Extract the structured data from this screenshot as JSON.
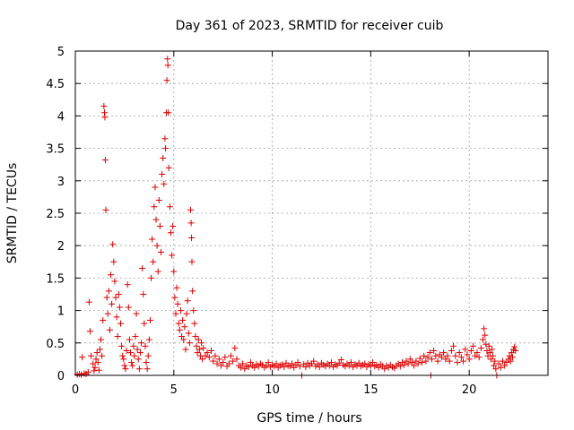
{
  "chart_data": {
    "type": "scatter",
    "title": "Day 361 of 2023, SRMTID for receiver cuib",
    "xlabel": "GPS time / hours",
    "ylabel": "SRMTID / TECUs",
    "xlim": [
      0,
      24
    ],
    "ylim": [
      0,
      5
    ],
    "x_ticks": [
      0,
      5,
      10,
      15,
      20
    ],
    "x_tick_labels": [
      "0",
      "5",
      "10",
      "15",
      "20"
    ],
    "y_ticks": [
      0,
      0.5,
      1,
      1.5,
      2,
      2.5,
      3,
      3.5,
      4,
      4.5,
      5
    ],
    "y_tick_labels": [
      "0",
      "0.5",
      "1",
      "1.5",
      "2",
      "2.5",
      "3",
      "3.5",
      "4",
      "4.5",
      "5"
    ],
    "grid": true,
    "marker": "plus",
    "color": "#dd0000",
    "series": [
      {
        "name": "SRMTID",
        "points": [
          [
            0.1,
            0.01
          ],
          [
            0.2,
            0.02
          ],
          [
            0.3,
            0.01
          ],
          [
            0.35,
            0.28
          ],
          [
            0.45,
            0.03
          ],
          [
            0.55,
            0.02
          ],
          [
            0.65,
            0.05
          ],
          [
            0.7,
            1.13
          ],
          [
            0.75,
            0.68
          ],
          [
            0.8,
            0.3
          ],
          [
            0.9,
            0.18
          ],
          [
            0.95,
            0.07
          ],
          [
            1.0,
            0.12
          ],
          [
            1.05,
            0.25
          ],
          [
            1.1,
            0.35
          ],
          [
            1.15,
            0.2
          ],
          [
            1.2,
            0.08
          ],
          [
            1.25,
            0.4
          ],
          [
            1.3,
            0.55
          ],
          [
            1.35,
            0.3
          ],
          [
            1.4,
            0.85
          ],
          [
            1.45,
            4.15
          ],
          [
            1.48,
            4.05
          ],
          [
            1.5,
            3.98
          ],
          [
            1.52,
            3.32
          ],
          [
            1.55,
            2.55
          ],
          [
            1.6,
            1.2
          ],
          [
            1.65,
            0.95
          ],
          [
            1.7,
            1.3
          ],
          [
            1.75,
            0.7
          ],
          [
            1.8,
            1.55
          ],
          [
            1.85,
            1.1
          ],
          [
            1.9,
            2.02
          ],
          [
            1.95,
            1.75
          ],
          [
            2.0,
            1.45
          ],
          [
            2.05,
            1.2
          ],
          [
            2.1,
            0.9
          ],
          [
            2.15,
            0.6
          ],
          [
            2.2,
            1.25
          ],
          [
            2.25,
            1.05
          ],
          [
            2.3,
            0.8
          ],
          [
            2.35,
            0.45
          ],
          [
            2.4,
            0.3
          ],
          [
            2.45,
            0.25
          ],
          [
            2.5,
            0.15
          ],
          [
            2.55,
            0.1
          ],
          [
            2.6,
            0.38
          ],
          [
            2.65,
            1.4
          ],
          [
            2.7,
            1.05
          ],
          [
            2.75,
            0.55
          ],
          [
            2.8,
            0.35
          ],
          [
            2.85,
            0.2
          ],
          [
            2.9,
            0.15
          ],
          [
            2.95,
            0.45
          ],
          [
            3.0,
            0.3
          ],
          [
            3.05,
            0.6
          ],
          [
            3.1,
            0.95
          ],
          [
            3.15,
            0.4
          ],
          [
            3.2,
            0.25
          ],
          [
            3.25,
            0.1
          ],
          [
            3.3,
            0.35
          ],
          [
            3.35,
            0.5
          ],
          [
            3.4,
            1.65
          ],
          [
            3.45,
            1.25
          ],
          [
            3.5,
            0.8
          ],
          [
            3.55,
            0.45
          ],
          [
            3.6,
            0.2
          ],
          [
            3.65,
            0.1
          ],
          [
            3.7,
            0.3
          ],
          [
            3.75,
            0.55
          ],
          [
            3.8,
            0.85
          ],
          [
            3.85,
            1.5
          ],
          [
            3.9,
            2.1
          ],
          [
            3.95,
            1.75
          ],
          [
            4.0,
            2.6
          ],
          [
            4.05,
            2.9
          ],
          [
            4.1,
            2.4
          ],
          [
            4.15,
            2.0
          ],
          [
            4.2,
            1.6
          ],
          [
            4.25,
            2.7
          ],
          [
            4.3,
            2.3
          ],
          [
            4.35,
            1.9
          ],
          [
            4.4,
            3.1
          ],
          [
            4.45,
            3.35
          ],
          [
            4.5,
            2.95
          ],
          [
            4.55,
            3.65
          ],
          [
            4.58,
            3.5
          ],
          [
            4.62,
            4.05
          ],
          [
            4.65,
            4.55
          ],
          [
            4.68,
            4.88
          ],
          [
            4.7,
            4.78
          ],
          [
            4.72,
            4.05
          ],
          [
            4.75,
            3.2
          ],
          [
            4.8,
            2.6
          ],
          [
            4.85,
            2.2
          ],
          [
            4.9,
            1.85
          ],
          [
            4.95,
            2.3
          ],
          [
            5.0,
            1.6
          ],
          [
            5.05,
            1.2
          ],
          [
            5.1,
            0.95
          ],
          [
            5.15,
            1.35
          ],
          [
            5.2,
            1.1
          ],
          [
            5.25,
            0.8
          ],
          [
            5.3,
            0.7
          ],
          [
            5.35,
            1.0
          ],
          [
            5.4,
            0.6
          ],
          [
            5.45,
            0.85
          ],
          [
            5.5,
            0.55
          ],
          [
            5.55,
            0.75
          ],
          [
            5.6,
            0.4
          ],
          [
            5.65,
            0.95
          ],
          [
            5.7,
            1.15
          ],
          [
            5.75,
            0.65
          ],
          [
            5.8,
            0.5
          ],
          [
            5.85,
            2.55
          ],
          [
            5.88,
            2.35
          ],
          [
            5.9,
            2.12
          ],
          [
            5.92,
            1.75
          ],
          [
            5.95,
            1.3
          ],
          [
            6.0,
            1.0
          ],
          [
            6.05,
            0.8
          ],
          [
            6.1,
            0.6
          ],
          [
            6.15,
            0.45
          ],
          [
            6.2,
            0.35
          ],
          [
            6.25,
            0.55
          ],
          [
            6.3,
            0.4
          ],
          [
            6.35,
            0.3
          ],
          [
            6.4,
            0.5
          ],
          [
            6.45,
            0.25
          ],
          [
            6.5,
            0.42
          ],
          [
            6.6,
            0.3
          ],
          [
            6.7,
            0.35
          ],
          [
            6.8,
            0.28
          ],
          [
            6.9,
            0.38
          ],
          [
            7.0,
            0.22
          ],
          [
            7.1,
            0.3
          ],
          [
            7.2,
            0.18
          ],
          [
            7.3,
            0.25
          ],
          [
            7.4,
            0.15
          ],
          [
            7.5,
            0.2
          ],
          [
            7.6,
            0.28
          ],
          [
            7.7,
            0.14
          ],
          [
            7.8,
            0.18
          ],
          [
            7.9,
            0.3
          ],
          [
            8.0,
            0.22
          ],
          [
            8.1,
            0.42
          ],
          [
            8.2,
            0.25
          ],
          [
            8.3,
            0.15
          ],
          [
            8.4,
            0.12
          ],
          [
            8.5,
            0.18
          ],
          [
            8.6,
            0.1
          ],
          [
            8.7,
            0.15
          ],
          [
            8.8,
            0.13
          ],
          [
            8.9,
            0.2
          ],
          [
            9.0,
            0.15
          ],
          [
            9.1,
            0.12
          ],
          [
            9.2,
            0.17
          ],
          [
            9.3,
            0.14
          ],
          [
            9.4,
            0.18
          ],
          [
            9.5,
            0.16
          ],
          [
            9.6,
            0.12
          ],
          [
            9.7,
            0.15
          ],
          [
            9.8,
            0.2
          ],
          [
            9.9,
            0.13
          ],
          [
            10.0,
            0.16
          ],
          [
            10.1,
            0.14
          ],
          [
            10.2,
            0.18
          ],
          [
            10.3,
            0.12
          ],
          [
            10.4,
            0.15
          ],
          [
            10.5,
            0.17
          ],
          [
            10.6,
            0.13
          ],
          [
            10.7,
            0.19
          ],
          [
            10.8,
            0.15
          ],
          [
            10.9,
            0.14
          ],
          [
            11.0,
            0.18
          ],
          [
            11.1,
            0.12
          ],
          [
            11.2,
            0.16
          ],
          [
            11.3,
            0.2
          ],
          [
            11.4,
            0.14
          ],
          [
            11.5,
            0.0
          ],
          [
            11.6,
            0.17
          ],
          [
            11.7,
            0.13
          ],
          [
            11.8,
            0.19
          ],
          [
            11.9,
            0.15
          ],
          [
            12.0,
            0.18
          ],
          [
            12.1,
            0.22
          ],
          [
            12.2,
            0.14
          ],
          [
            12.3,
            0.17
          ],
          [
            12.4,
            0.13
          ],
          [
            12.5,
            0.19
          ],
          [
            12.6,
            0.16
          ],
          [
            12.7,
            0.14
          ],
          [
            12.8,
            0.18
          ],
          [
            12.9,
            0.15
          ],
          [
            13.0,
            0.2
          ],
          [
            13.1,
            0.13
          ],
          [
            13.2,
            0.17
          ],
          [
            13.3,
            0.15
          ],
          [
            13.4,
            0.19
          ],
          [
            13.5,
            0.24
          ],
          [
            13.6,
            0.16
          ],
          [
            13.7,
            0.14
          ],
          [
            13.8,
            0.18
          ],
          [
            13.9,
            0.15
          ],
          [
            14.0,
            0.2
          ],
          [
            14.1,
            0.13
          ],
          [
            14.2,
            0.17
          ],
          [
            14.3,
            0.15
          ],
          [
            14.4,
            0.19
          ],
          [
            14.5,
            0.14
          ],
          [
            14.6,
            0.16
          ],
          [
            14.7,
            0.18
          ],
          [
            14.8,
            0.13
          ],
          [
            14.9,
            0.17
          ],
          [
            15.0,
            0.15
          ],
          [
            15.1,
            0.2
          ],
          [
            15.2,
            0.14
          ],
          [
            15.3,
            0.16
          ],
          [
            15.4,
            0.12
          ],
          [
            15.5,
            0.17
          ],
          [
            15.6,
            0.14
          ],
          [
            15.7,
            0.1
          ],
          [
            15.8,
            0.15
          ],
          [
            15.9,
            0.12
          ],
          [
            16.0,
            0.16
          ],
          [
            16.1,
            0.13
          ],
          [
            16.2,
            0.11
          ],
          [
            16.3,
            0.15
          ],
          [
            16.4,
            0.18
          ],
          [
            16.5,
            0.14
          ],
          [
            16.6,
            0.2
          ],
          [
            16.7,
            0.16
          ],
          [
            16.8,
            0.22
          ],
          [
            16.9,
            0.18
          ],
          [
            17.0,
            0.25
          ],
          [
            17.1,
            0.2
          ],
          [
            17.2,
            0.15
          ],
          [
            17.3,
            0.22
          ],
          [
            17.4,
            0.18
          ],
          [
            17.5,
            0.26
          ],
          [
            17.6,
            0.2
          ],
          [
            17.7,
            0.3
          ],
          [
            17.8,
            0.22
          ],
          [
            17.9,
            0.28
          ],
          [
            18.0,
            0.35
          ],
          [
            18.05,
            0.0
          ],
          [
            18.1,
            0.25
          ],
          [
            18.2,
            0.38
          ],
          [
            18.3,
            0.3
          ],
          [
            18.4,
            0.22
          ],
          [
            18.5,
            0.32
          ],
          [
            18.6,
            0.28
          ],
          [
            18.7,
            0.35
          ],
          [
            18.8,
            0.25
          ],
          [
            18.9,
            0.3
          ],
          [
            19.0,
            0.22
          ],
          [
            19.1,
            0.38
          ],
          [
            19.2,
            0.45
          ],
          [
            19.3,
            0.3
          ],
          [
            19.4,
            0.2
          ],
          [
            19.5,
            0.35
          ],
          [
            19.6,
            0.28
          ],
          [
            19.7,
            0.22
          ],
          [
            19.8,
            0.4
          ],
          [
            19.9,
            0.32
          ],
          [
            20.0,
            0.25
          ],
          [
            20.1,
            0.38
          ],
          [
            20.2,
            0.45
          ],
          [
            20.3,
            0.3
          ],
          [
            20.4,
            0.35
          ],
          [
            20.5,
            0.28
          ],
          [
            20.6,
            0.42
          ],
          [
            20.7,
            0.55
          ],
          [
            20.75,
            0.72
          ],
          [
            20.8,
            0.62
          ],
          [
            20.85,
            0.48
          ],
          [
            20.9,
            0.38
          ],
          [
            20.95,
            0.3
          ],
          [
            21.0,
            0.45
          ],
          [
            21.05,
            0.35
          ],
          [
            21.1,
            0.25
          ],
          [
            21.15,
            0.4
          ],
          [
            21.2,
            0.3
          ],
          [
            21.25,
            0.15
          ],
          [
            21.3,
            0.22
          ],
          [
            21.35,
            0.1
          ],
          [
            21.4,
            0.0
          ],
          [
            21.5,
            0.18
          ],
          [
            21.6,
            0.12
          ],
          [
            21.7,
            0.22
          ],
          [
            21.8,
            0.15
          ],
          [
            21.9,
            0.2
          ],
          [
            22.0,
            0.25
          ],
          [
            22.05,
            0.3
          ],
          [
            22.1,
            0.22
          ],
          [
            22.15,
            0.35
          ],
          [
            22.2,
            0.28
          ],
          [
            22.25,
            0.4
          ],
          [
            22.3,
            0.44
          ],
          [
            22.35,
            0.38
          ]
        ]
      }
    ]
  }
}
